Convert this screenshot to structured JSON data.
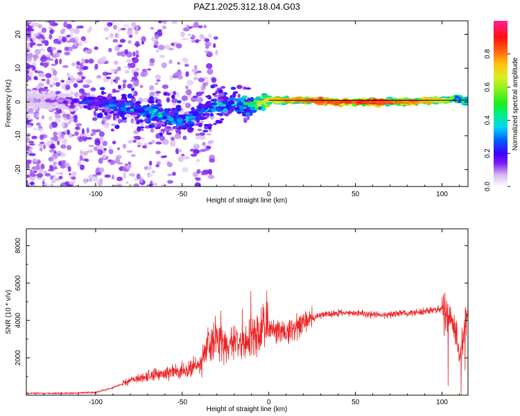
{
  "chart_data": [
    {
      "type": "heatmap",
      "title": "PAZ1.2025.312.18.04.G03",
      "xlabel": "Height of straight line (km)",
      "ylabel": "Frequency (Hz)",
      "xlim": [
        -140,
        115
      ],
      "ylim": [
        -25,
        24
      ],
      "xticks": [
        -100,
        -50,
        0,
        50,
        100
      ],
      "yticks": [
        -20,
        -10,
        0,
        10,
        20
      ],
      "colorbar": {
        "label": "Normalized spectral amplitude",
        "range": [
          0.0,
          1.0
        ],
        "ticks": [
          0.0,
          0.2,
          0.4,
          0.6,
          0.8
        ],
        "tick_labels": [
          "0.0",
          "0.2",
          "0.4",
          "0.6",
          "0.8"
        ],
        "colormap": "gist_ncar-like (white, violet, blue, cyan, green, yellow, orange, red, magenta)"
      },
      "ridge": {
        "description": "Dominant frequency ridge: noisy and wandering below 0 km, stable near 0 Hz above 0 km",
        "x": [
          -140,
          -120,
          -100,
          -80,
          -60,
          -50,
          -40,
          -30,
          -20,
          -10,
          0,
          20,
          40,
          60,
          80,
          100,
          110,
          115
        ],
        "freq": [
          1,
          0,
          0,
          -2,
          -4,
          -6,
          -3,
          -1,
          -1,
          -1,
          0.5,
          0.5,
          0,
          0,
          0,
          0.5,
          1,
          0
        ],
        "amplitude": [
          0.1,
          0.15,
          0.3,
          0.35,
          0.45,
          0.35,
          0.35,
          0.4,
          0.4,
          0.55,
          0.7,
          0.8,
          0.85,
          0.85,
          0.8,
          0.7,
          0.45,
          0.4
        ]
      }
    },
    {
      "type": "line",
      "xlabel": "Height of straight line (km)",
      "ylabel": "SNR (10 * v/v)",
      "xlim": [
        -140,
        115
      ],
      "ylim": [
        0,
        8900
      ],
      "xticks": [
        -100,
        -50,
        0,
        50,
        100
      ],
      "yticks": [
        2000,
        4000,
        6000,
        8000
      ],
      "color": "#ee2222",
      "series": [
        {
          "name": "SNR",
          "x": [
            -140,
            -120,
            -100,
            -90,
            -80,
            -70,
            -60,
            -50,
            -40,
            -35,
            -30,
            -25,
            -20,
            -15,
            -10,
            -5,
            0,
            5,
            10,
            15,
            20,
            25,
            30,
            40,
            50,
            60,
            70,
            80,
            90,
            100,
            105,
            108,
            110,
            115
          ],
          "y": [
            100,
            100,
            150,
            400,
            800,
            1000,
            1200,
            1300,
            1600,
            2500,
            3000,
            2600,
            2800,
            2900,
            3200,
            3400,
            3600,
            3500,
            3400,
            3600,
            3900,
            4100,
            4300,
            4400,
            4400,
            4300,
            4300,
            4400,
            4500,
            4600,
            4200,
            3500,
            2000,
            4500
          ]
        }
      ]
    }
  ]
}
